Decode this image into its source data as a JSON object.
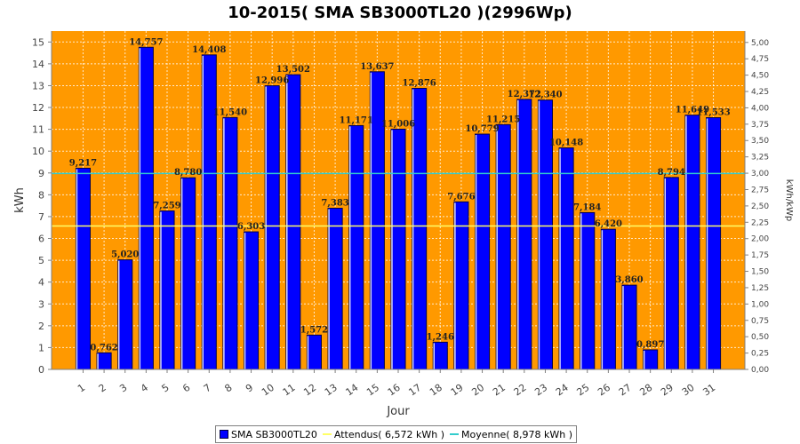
{
  "chart_data": {
    "type": "bar",
    "title": "10-2015( SMA SB3000TL20 )(2996Wp)",
    "xlabel": "Jour",
    "ylabel": "kWh",
    "y2label": "kWh/kWp",
    "categories": [
      "1",
      "2",
      "3",
      "4",
      "5",
      "6",
      "7",
      "8",
      "9",
      "10",
      "11",
      "12",
      "13",
      "14",
      "15",
      "16",
      "17",
      "18",
      "19",
      "20",
      "21",
      "22",
      "23",
      "24",
      "25",
      "26",
      "27",
      "28",
      "29",
      "30",
      "31"
    ],
    "series": [
      {
        "name": "SMA SB3000TL20",
        "values": [
          9.217,
          0.762,
          5.02,
          14.757,
          7.259,
          8.78,
          14.408,
          11.54,
          6.303,
          12.996,
          13.502,
          1.572,
          7.383,
          11.171,
          13.637,
          11.006,
          12.876,
          1.246,
          7.676,
          10.779,
          11.215,
          12.372,
          12.34,
          10.148,
          7.184,
          6.42,
          3.86,
          0.897,
          8.794,
          11.649,
          11.533
        ]
      }
    ],
    "data_labels": [
      "9,217",
      "0,762",
      "5,020",
      "14,757",
      "7,259",
      "8,780",
      "14,408",
      "11,540",
      "6,303",
      "12,996",
      "13,502",
      "1,572",
      "7,383",
      "11,171",
      "13,637",
      "11,006",
      "12,876",
      "1,246",
      "7,676",
      "10,779",
      "11,215",
      "12,372",
      "12,340",
      "10,148",
      "7,184",
      "6,420",
      "3,860",
      "0,897",
      "8,794",
      "11,649",
      "11,533"
    ],
    "reference_lines": [
      {
        "name": "Attendus( 6,572 kWh )",
        "value": 6.572,
        "color": "#ffff66"
      },
      {
        "name": "Moyenne( 8,978 kWh )",
        "value": 8.978,
        "color": "#33cccc"
      }
    ],
    "ylim": [
      0,
      15.5
    ],
    "yticks": [
      0,
      1,
      2,
      3,
      4,
      5,
      6,
      7,
      8,
      9,
      10,
      11,
      12,
      13,
      14,
      15
    ],
    "y2lim": [
      0,
      5.1736
    ],
    "y2ticks": [
      "0,00",
      "0,25",
      "0,50",
      "0,75",
      "1,00",
      "1,25",
      "1,50",
      "1,75",
      "2,00",
      "2,25",
      "2,50",
      "2,75",
      "3,00",
      "3,25",
      "3,50",
      "3,75",
      "4,00",
      "4,25",
      "4,50",
      "4,75",
      "5,00"
    ],
    "grid": true,
    "legend_position": "bottom",
    "colors": {
      "background": "#ff9900",
      "bar": "#0000ff",
      "bar_edge": "#00004d",
      "grid": "#ffffff"
    }
  },
  "legend": {
    "items": [
      {
        "label": "SMA SB3000TL20",
        "kind": "bar",
        "color": "#0000ff"
      },
      {
        "label": "Attendus( 6,572 kWh )",
        "kind": "line",
        "color": "#ffff66"
      },
      {
        "label": "Moyenne( 8,978 kWh )",
        "kind": "line",
        "color": "#33cccc"
      }
    ]
  }
}
